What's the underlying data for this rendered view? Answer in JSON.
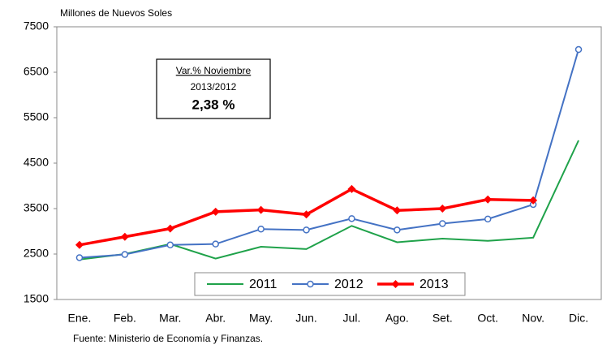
{
  "chart_data": {
    "type": "line",
    "y_axis_label": "Millones de Nuevos Soles",
    "source": "Fuente: Ministerio de Economía y Finanzas.",
    "annotation": {
      "title": "Var.% Noviembre",
      "period": "2013/2012",
      "value": "2,38 %"
    },
    "categories": [
      "Ene.",
      "Feb.",
      "Mar.",
      "Abr.",
      "May.",
      "Jun.",
      "Jul.",
      "Ago.",
      "Set.",
      "Oct.",
      "Nov.",
      "Dic."
    ],
    "series": [
      {
        "name": "2011",
        "color": "#1fa24a",
        "marker": "none",
        "values": [
          2380,
          2500,
          2720,
          2400,
          2660,
          2610,
          3120,
          2760,
          2840,
          2790,
          2860,
          5000
        ]
      },
      {
        "name": "2012",
        "color": "#4472c4",
        "marker": "circle",
        "values": [
          2420,
          2490,
          2700,
          2720,
          3050,
          3030,
          3280,
          3030,
          3170,
          3270,
          3590,
          7000
        ]
      },
      {
        "name": "2013",
        "color": "#ff0000",
        "marker": "diamond",
        "values": [
          2700,
          2880,
          3060,
          3430,
          3470,
          3370,
          3930,
          3460,
          3500,
          3700,
          3680,
          null
        ]
      }
    ],
    "ylim": [
      1500,
      7500
    ],
    "yticks": [
      1500,
      2500,
      3500,
      4500,
      5500,
      6500,
      7500
    ],
    "grid": false
  }
}
